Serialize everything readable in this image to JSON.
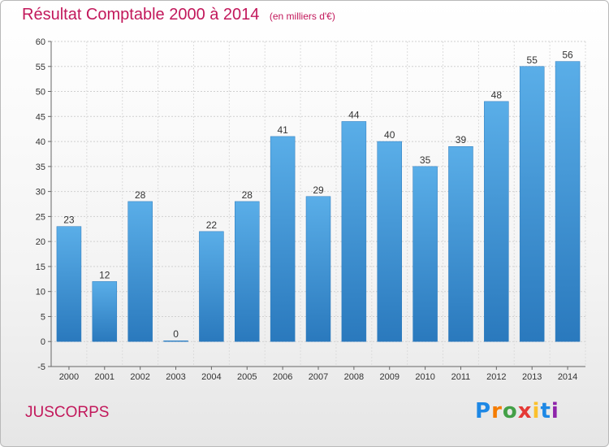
{
  "chart_data": {
    "type": "bar",
    "title": "Résultat Comptable 2000 à 2014",
    "subtitle": "(en milliers d'€)",
    "categories": [
      "2000",
      "2001",
      "2002",
      "2003",
      "2004",
      "2005",
      "2006",
      "2007",
      "2008",
      "2009",
      "2010",
      "2011",
      "2012",
      "2013",
      "2014"
    ],
    "values": [
      23,
      12,
      28,
      0,
      22,
      28,
      41,
      29,
      44,
      40,
      35,
      39,
      48,
      55,
      56
    ],
    "ylim": [
      -5,
      60
    ],
    "yticks": [
      -5,
      0,
      5,
      10,
      15,
      20,
      25,
      30,
      35,
      40,
      45,
      50,
      55,
      60
    ],
    "grid": true,
    "bar_color": "#3d8fd6"
  },
  "place_name": "JUSCORPS",
  "logo": {
    "letters": [
      "P",
      "r",
      "o",
      "x",
      "i",
      "t",
      "i"
    ],
    "colors": [
      "#1e88e5",
      "#f57c00",
      "#43a047",
      "#e53935",
      "#fbc02d",
      "#1e88e5",
      "#8e24aa"
    ]
  }
}
